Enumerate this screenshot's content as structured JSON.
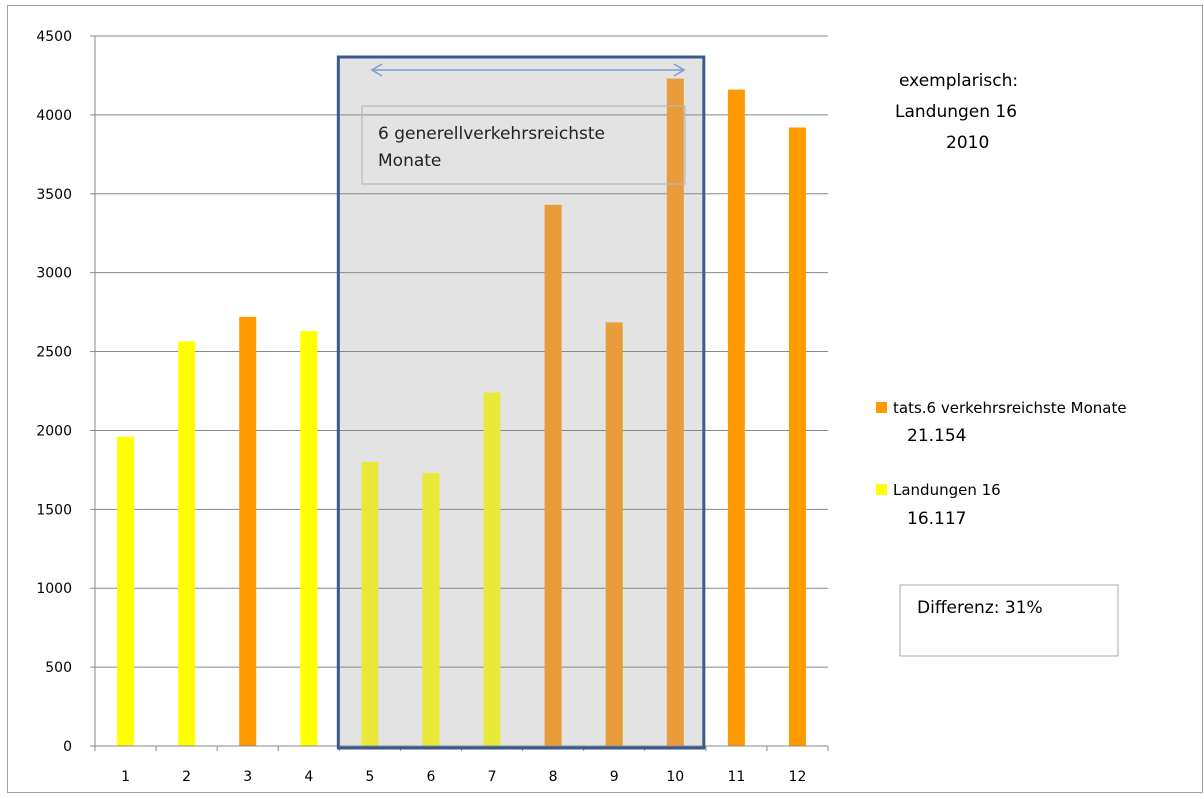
{
  "chart_data": {
    "type": "bar",
    "categories": [
      "1",
      "2",
      "3",
      "4",
      "5",
      "6",
      "7",
      "8",
      "9",
      "10",
      "11",
      "12"
    ],
    "values": [
      1960,
      2565,
      2720,
      2630,
      1800,
      1730,
      2240,
      3430,
      2685,
      4230,
      4160,
      3920
    ],
    "bar_series": [
      "Landungen 16",
      "Landungen 16",
      "tats.6 verkehrsreichste Monate",
      "Landungen 16",
      "Landungen 16",
      "Landungen 16",
      "Landungen 16",
      "tats.6 verkehrsreichste Monate",
      "tats.6 verkehrsreichste Monate",
      "tats.6 verkehrsreichste Monate",
      "tats.6 verkehrsreichste Monate",
      "tats.6 verkehrsreichste Monate"
    ],
    "ylim": [
      0,
      4500
    ],
    "yticks": [
      0,
      500,
      1000,
      1500,
      2000,
      2500,
      3000,
      3500,
      4000,
      4500
    ],
    "grid": true,
    "legend_position": "right",
    "series": [
      {
        "name": "tats.6 verkehrsreichste Monate",
        "total": "21.154",
        "color": "#ff9900"
      },
      {
        "name": "Landungen 16",
        "total": "16.117",
        "color": "#ffff00"
      }
    ],
    "highlight_range": [
      5,
      10
    ],
    "highlight_label_lines": [
      "6 generellverkehrsreichste",
      "Monate"
    ],
    "note_lines": [
      "exemplarisch:",
      "Landungen 16",
      "2010"
    ],
    "difference_label": "Differenz: 31%"
  },
  "colors": {
    "orange": "#ff9900",
    "yellow": "#ffff00",
    "highlight_fill": "#e3e3e3",
    "highlight_border": "#3a5a8c",
    "arrow": "#7f9fc9",
    "grid": "#888888"
  }
}
